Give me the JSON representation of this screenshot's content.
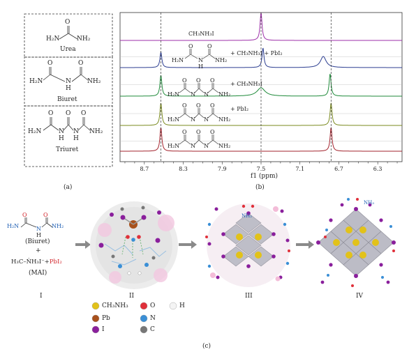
{
  "panel_a": {
    "label": "(a)",
    "compounds": [
      {
        "name": "Urea"
      },
      {
        "name": "Biuret"
      },
      {
        "name": "Triuret"
      }
    ],
    "atoms": {
      "n": "N",
      "h2n": "H₂N",
      "nh2": "NH₂",
      "h": "H",
      "o": "O",
      "h2n_alt": "H2N"
    }
  },
  "panel_b": {
    "label": "(b)",
    "traces": [
      {
        "label": "CH₃NH₃I",
        "color": "#9c2fa8"
      },
      {
        "label": "+ CH₃NH₃I + PbI₂",
        "color": "#2c3e91"
      },
      {
        "label": "+ CH₃NH₃I",
        "color": "#1f8a3a"
      },
      {
        "label": "+ PbI₂",
        "color": "#7a8a1e"
      },
      {
        "label": "",
        "color": "#a3232d"
      }
    ]
  },
  "chart_data": {
    "type": "line",
    "xlabel": "f1 (ppm)",
    "x_ticks": [
      "8.7",
      "8.3",
      "7.9",
      "7.5",
      "7.1",
      "6.7",
      "6.3"
    ],
    "xlim": [
      8.95,
      6.05
    ],
    "reference_lines_ppm": [
      8.53,
      7.5,
      6.78
    ],
    "series": [
      {
        "peaks": [
          {
            "ppm": 7.5,
            "height": 1.0
          }
        ]
      },
      {
        "peaks": [
          {
            "ppm": 8.53,
            "height": 0.55
          },
          {
            "ppm": 7.48,
            "height": 0.7
          },
          {
            "ppm": 6.86,
            "height": 0.4
          }
        ]
      },
      {
        "peaks": [
          {
            "ppm": 8.53,
            "height": 0.75
          },
          {
            "ppm": 7.5,
            "height": 0.3
          },
          {
            "ppm": 6.79,
            "height": 0.8
          }
        ]
      },
      {
        "peaks": [
          {
            "ppm": 8.53,
            "height": 0.8
          },
          {
            "ppm": 6.78,
            "height": 0.8
          }
        ]
      },
      {
        "peaks": [
          {
            "ppm": 8.53,
            "height": 0.85
          },
          {
            "ppm": 6.78,
            "height": 0.85
          }
        ]
      }
    ]
  },
  "panel_c": {
    "label": "(c)",
    "reactants": {
      "biuret": "(Biuret)",
      "plus": "+",
      "mai_formula": "H₃C–ṄH₃I⁻+",
      "pbi2": "PbI₂",
      "mai": "(MAI)"
    },
    "steps": [
      "I",
      "II",
      "III",
      "IV"
    ],
    "structure_labels": {
      "nh2": "NH₂",
      "nh3": "NH₃"
    },
    "legend": [
      {
        "label": "CH₃NH₃",
        "color": "#e2c21a"
      },
      {
        "label": "O",
        "color": "#e0303a"
      },
      {
        "label": "H",
        "color": "#f4f4f4"
      },
      {
        "label": "Pb",
        "color": "#a8511c"
      },
      {
        "label": "N",
        "color": "#3a8fd6"
      },
      {
        "label": "I",
        "color": "#8a1f9c"
      },
      {
        "label": "C",
        "color": "#777777"
      }
    ]
  }
}
